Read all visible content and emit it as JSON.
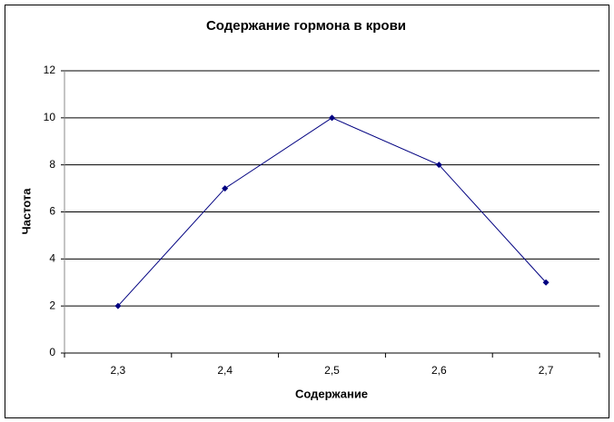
{
  "chart_data": {
    "type": "line",
    "title": "Содержание гормона в крови",
    "x_label": "Содержание",
    "y_label": "Частота",
    "categories": [
      "2,3",
      "2,4",
      "2,5",
      "2,6",
      "2,7"
    ],
    "series": [
      {
        "color": "#000080",
        "values": [
          2,
          7,
          10,
          8,
          3
        ]
      }
    ],
    "ylim": [
      0,
      12
    ],
    "yticks": [
      0,
      2,
      4,
      6,
      8,
      10,
      12
    ],
    "grid": true
  }
}
